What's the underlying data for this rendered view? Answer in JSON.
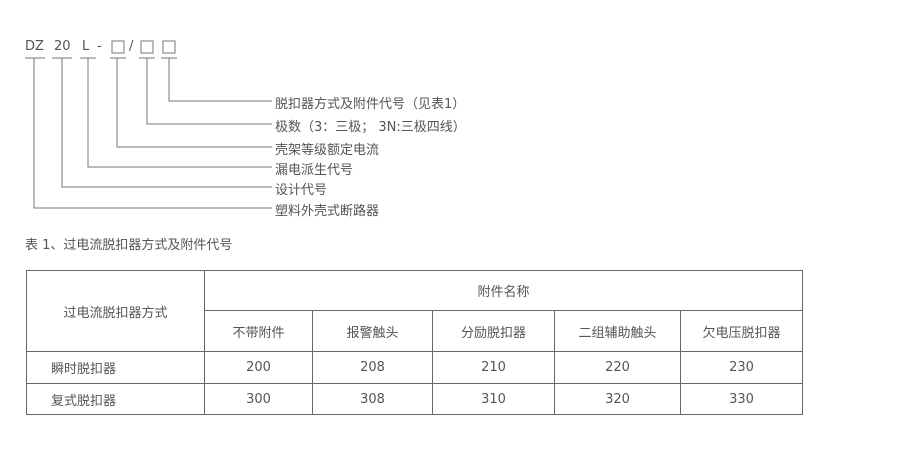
{
  "code": {
    "parts": [
      "DZ",
      "20",
      "L",
      "-",
      "□",
      "/",
      "□",
      "□"
    ]
  },
  "legend": [
    "脱扣器方式及附件代号（见表1）",
    "极数（3：三极； 3N:三极四线）",
    "壳架等级额定电流",
    "漏电派生代号",
    "设计代号",
    "塑料外壳式断路器"
  ],
  "table_caption": "表 1、过电流脱扣器方式及附件代号",
  "table": {
    "row_header": "过电流脱扣器方式",
    "group_header": "附件名称",
    "columns": [
      "不带附件",
      "报警触头",
      "分励脱扣器",
      "二组辅助触头",
      "欠电压脱扣器"
    ],
    "rows": [
      {
        "label": "瞬时脱扣器",
        "values": [
          "200",
          "208",
          "210",
          "220",
          "230"
        ]
      },
      {
        "label": "复式脱扣器",
        "values": [
          "300",
          "308",
          "310",
          "320",
          "330"
        ]
      }
    ]
  }
}
